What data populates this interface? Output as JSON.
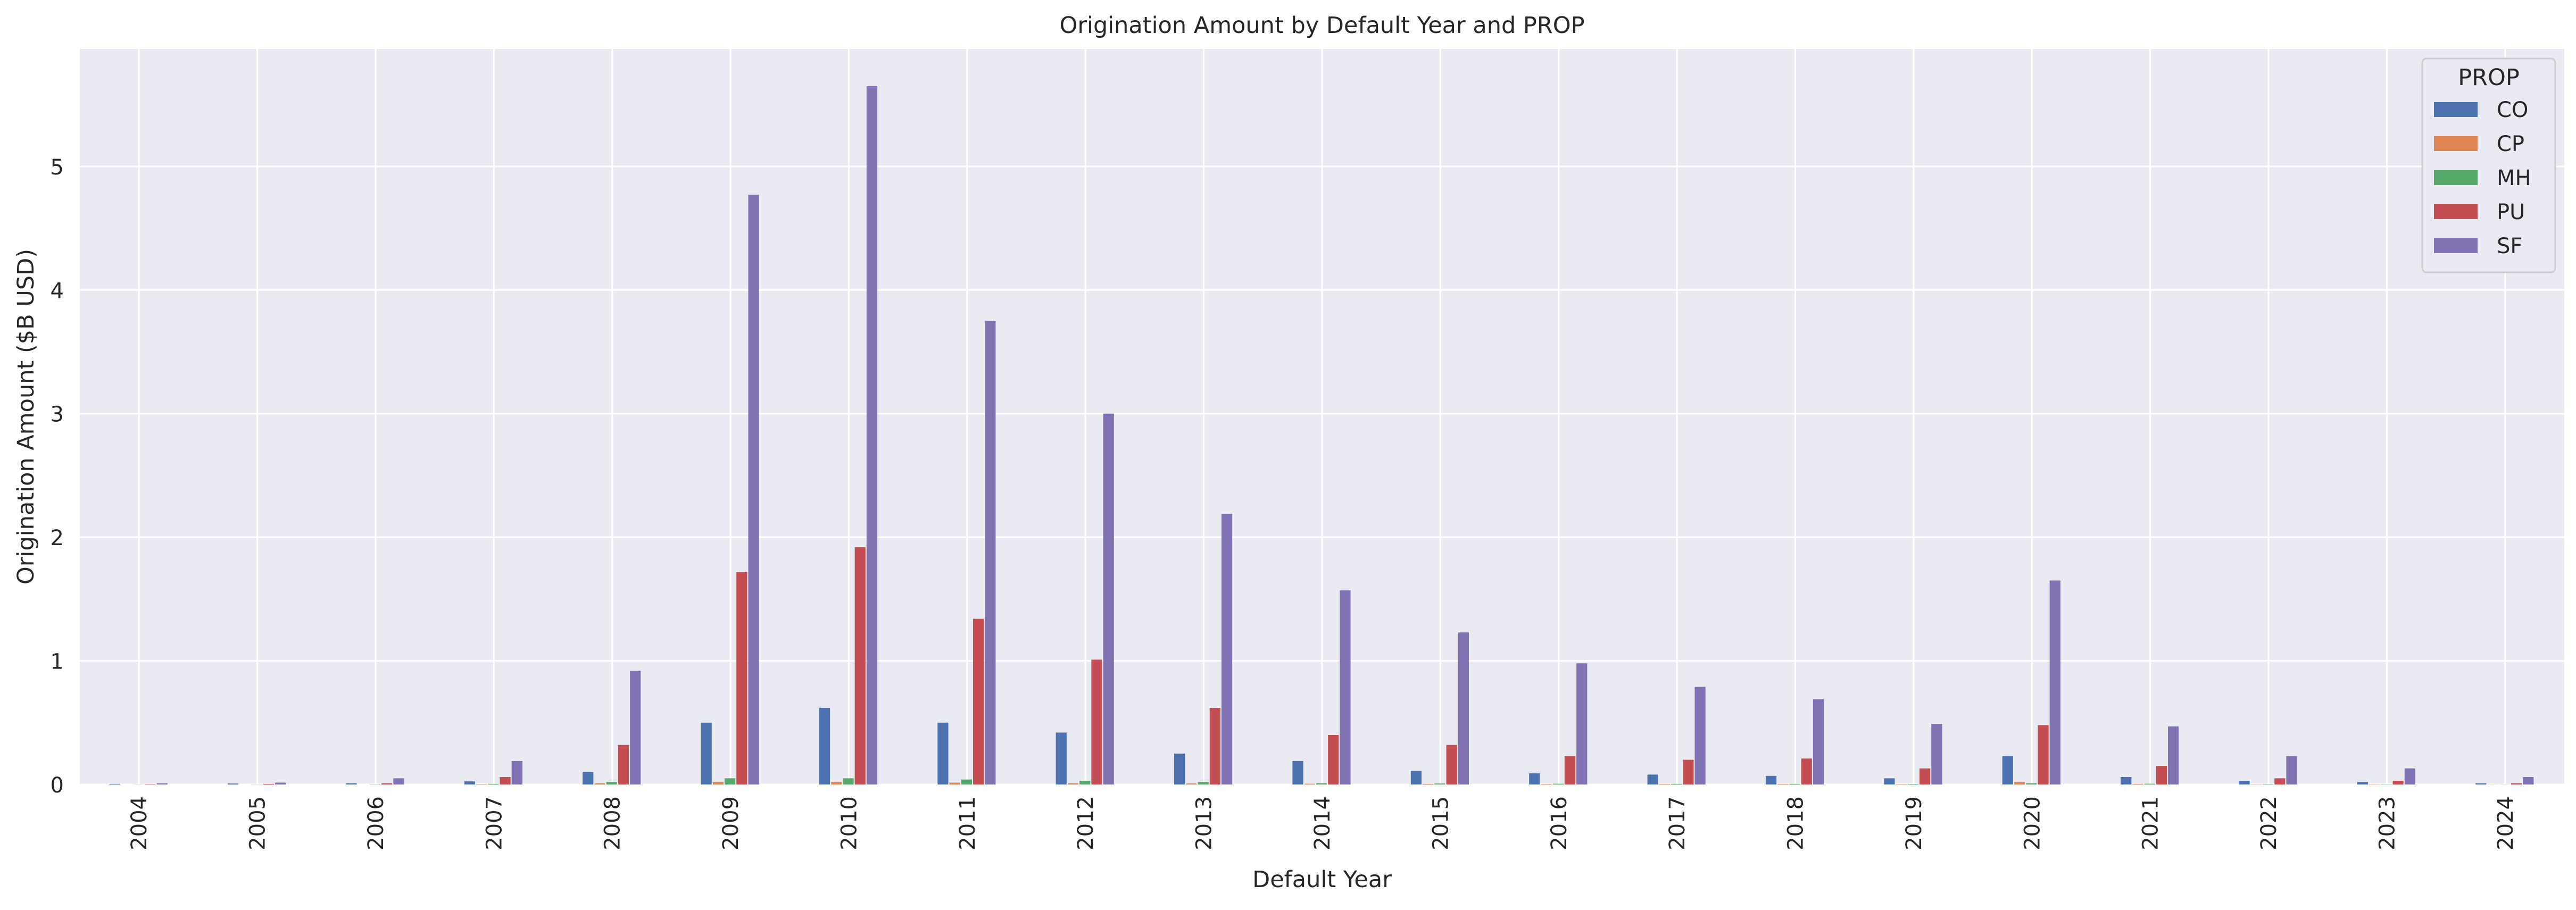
{
  "chart_data": {
    "type": "bar",
    "title": "Origination Amount by Default Year and PROP",
    "xlabel": "Default Year",
    "ylabel": "Origination Amount ($B USD)",
    "ylim": [
      0,
      5.95
    ],
    "yticks": [
      0,
      1,
      2,
      3,
      4,
      5
    ],
    "grid": true,
    "legend_title": "PROP",
    "legend_position": "top-right",
    "categories": [
      "2004",
      "2005",
      "2006",
      "2007",
      "2008",
      "2009",
      "2010",
      "2011",
      "2012",
      "2013",
      "2014",
      "2015",
      "2016",
      "2017",
      "2018",
      "2019",
      "2020",
      "2021",
      "2022",
      "2023",
      "2024"
    ],
    "series": [
      {
        "name": "CO",
        "color": "#4c72b0",
        "values": [
          0.005,
          0.008,
          0.01,
          0.025,
          0.1,
          0.5,
          0.62,
          0.5,
          0.42,
          0.25,
          0.19,
          0.11,
          0.09,
          0.08,
          0.07,
          0.05,
          0.23,
          0.06,
          0.03,
          0.02,
          0.01
        ]
      },
      {
        "name": "CP",
        "color": "#dd8452",
        "values": [
          0.0,
          0.0,
          0.0,
          0.003,
          0.01,
          0.02,
          0.02,
          0.015,
          0.01,
          0.008,
          0.006,
          0.005,
          0.004,
          0.004,
          0.004,
          0.003,
          0.02,
          0.005,
          0.002,
          0.002,
          0.001
        ]
      },
      {
        "name": "MH",
        "color": "#55a868",
        "values": [
          0.001,
          0.001,
          0.002,
          0.005,
          0.02,
          0.05,
          0.05,
          0.04,
          0.03,
          0.02,
          0.01,
          0.008,
          0.006,
          0.005,
          0.005,
          0.004,
          0.01,
          0.006,
          0.003,
          0.002,
          0.001
        ]
      },
      {
        "name": "PU",
        "color": "#c44e52",
        "values": [
          0.003,
          0.005,
          0.01,
          0.06,
          0.32,
          1.72,
          1.92,
          1.34,
          1.01,
          0.62,
          0.4,
          0.32,
          0.23,
          0.2,
          0.21,
          0.13,
          0.48,
          0.15,
          0.05,
          0.03,
          0.01
        ]
      },
      {
        "name": "SF",
        "color": "#8172b3",
        "values": [
          0.01,
          0.015,
          0.05,
          0.19,
          0.92,
          4.77,
          5.65,
          3.75,
          3.0,
          2.19,
          1.57,
          1.23,
          0.98,
          0.79,
          0.69,
          0.49,
          1.65,
          0.47,
          0.23,
          0.13,
          0.06
        ]
      }
    ]
  }
}
